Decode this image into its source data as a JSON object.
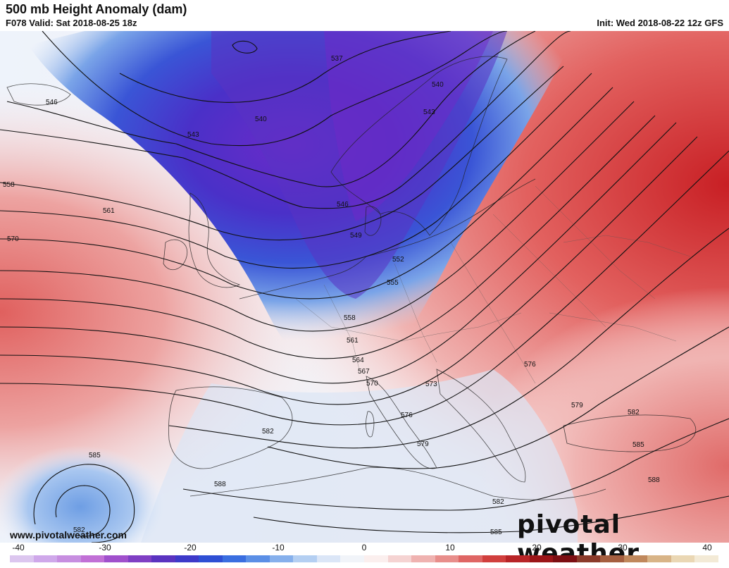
{
  "header": {
    "title": "500 mb Height Anomaly (dam)",
    "valid": "F078 Valid: Sat 2018-08-25 18z",
    "init": "Init: Wed 2018-08-22 12z GFS"
  },
  "footer": {
    "website": "www.pivotalweather.com",
    "brand": "pivotal weather"
  },
  "colorbar": {
    "ticks": [
      "-40",
      "-30",
      "-20",
      "-10",
      "0",
      "10",
      "20",
      "30",
      "40"
    ],
    "colors": [
      "#dcc6ef",
      "#cfa8ea",
      "#c78ee0",
      "#c170d6",
      "#a050cc",
      "#7f3fc4",
      "#5a33c0",
      "#3d39c9",
      "#2e4fd4",
      "#3a6ee0",
      "#5b8fe6",
      "#86b0ec",
      "#b4cff2",
      "#dbe6f7",
      "#f1f4f9",
      "#fbefee",
      "#f5d3d2",
      "#efb2b0",
      "#e88e8b",
      "#df6664",
      "#d13f3d",
      "#b82427",
      "#9b1518",
      "#7c0e12",
      "#8b3a2a",
      "#a55f40",
      "#c0885c",
      "#d8b487",
      "#ead7b4",
      "#f3ead6"
    ]
  },
  "contours": {
    "labels": [
      "537",
      "540",
      "540",
      "543",
      "543",
      "546",
      "546",
      "549",
      "552",
      "555",
      "558",
      "558",
      "561",
      "561",
      "564",
      "567",
      "570",
      "570",
      "573",
      "576",
      "576",
      "579",
      "579",
      "582",
      "582",
      "582",
      "585",
      "585",
      "585",
      "588",
      "588",
      "582"
    ]
  },
  "colors": {
    "negative": "#3f3fd0",
    "positive": "#d33b3b"
  }
}
